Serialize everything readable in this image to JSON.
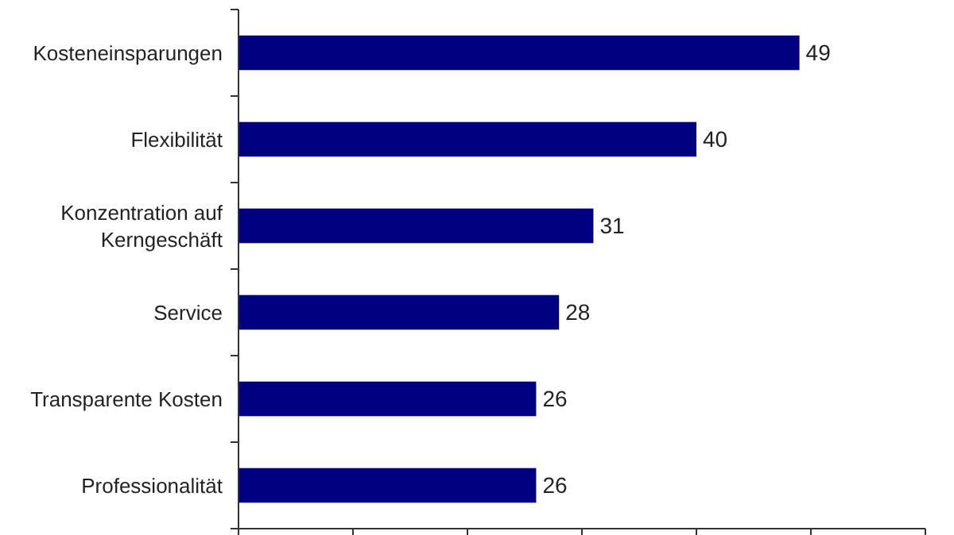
{
  "chart_data": {
    "type": "bar",
    "orientation": "horizontal",
    "categories": [
      "Kosteneinsparungen",
      "Flexibilität",
      "Konzentration auf Kerngeschäft",
      "Service",
      "Transparente Kosten",
      "Professionalität"
    ],
    "values": [
      49,
      40,
      31,
      28,
      26,
      26
    ],
    "color": "#000080",
    "xlim": [
      0,
      60
    ],
    "xticks": [
      {
        "value": 0,
        "label": null
      },
      {
        "value": 10,
        "label": null
      },
      {
        "value": 20,
        "label": null
      },
      {
        "value": 30,
        "label": null
      },
      {
        "value": 40,
        "label": null
      },
      {
        "value": 50,
        "label": null
      },
      {
        "value": 60,
        "label": null
      }
    ],
    "tick_labels": "y",
    "data_labels": true
  }
}
